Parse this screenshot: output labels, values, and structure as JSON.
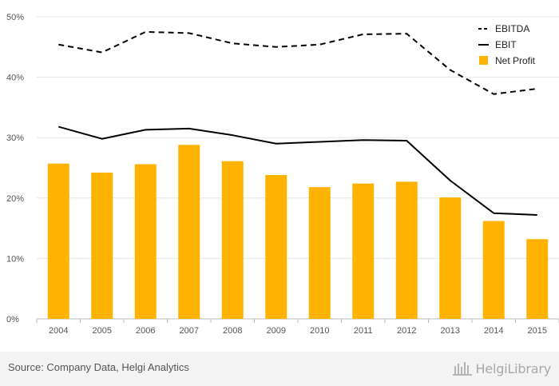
{
  "chart_data": {
    "type": "bar+line",
    "categories": [
      "2004",
      "2005",
      "2006",
      "2007",
      "2008",
      "2009",
      "2010",
      "2011",
      "2012",
      "2013",
      "2014",
      "2015"
    ],
    "series": [
      {
        "name": "EBITDA",
        "kind": "line",
        "style": "dashed",
        "color": "#000000",
        "values": [
          45.4,
          44.1,
          47.5,
          47.3,
          45.6,
          45.0,
          45.4,
          47.1,
          47.2,
          41.2,
          37.2,
          38.1
        ]
      },
      {
        "name": "EBIT",
        "kind": "line",
        "style": "solid",
        "color": "#000000",
        "values": [
          31.8,
          29.8,
          31.3,
          31.5,
          30.4,
          29.0,
          29.3,
          29.6,
          29.5,
          22.9,
          17.5,
          17.2
        ]
      },
      {
        "name": "Net Profit",
        "kind": "bar",
        "color": "#FFB300",
        "values": [
          25.7,
          24.2,
          25.6,
          28.8,
          26.1,
          23.8,
          21.8,
          22.4,
          22.7,
          20.1,
          16.2,
          13.2
        ]
      }
    ],
    "y_ticks": [
      "0%",
      "10%",
      "20%",
      "30%",
      "40%",
      "50%"
    ],
    "ylim": [
      0,
      50
    ],
    "grid": true,
    "legend_position": "top-right",
    "title": "",
    "xlabel": "",
    "ylabel": ""
  },
  "footer": {
    "source": "Source: Company Data, Helgi Analytics",
    "brand": "HelgiLibrary"
  }
}
